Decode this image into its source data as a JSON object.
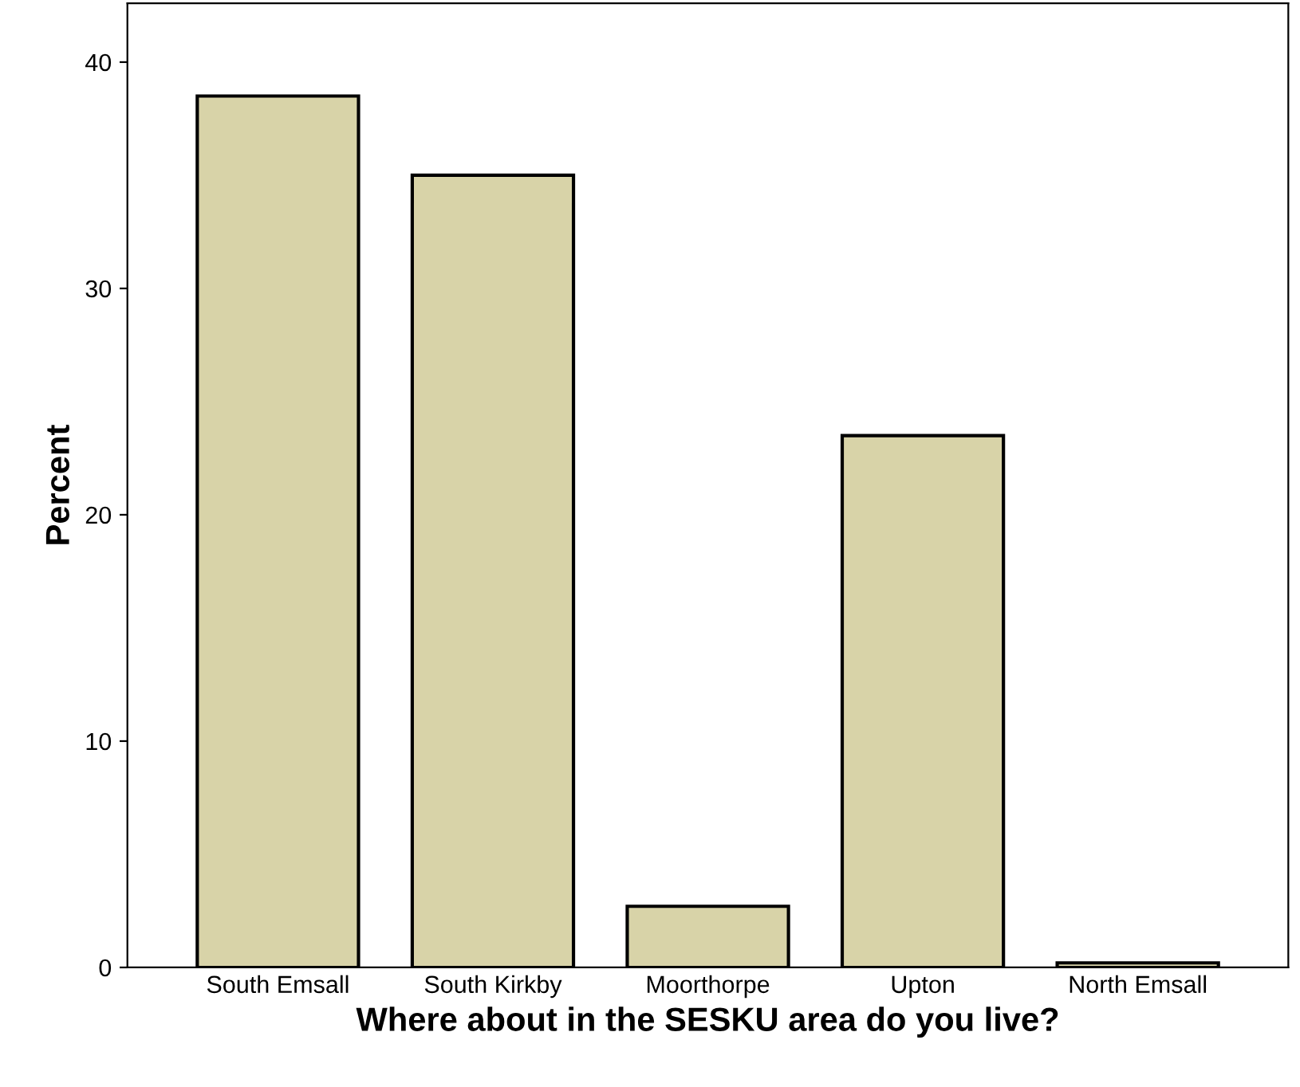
{
  "chart_data": {
    "type": "bar",
    "xlabel": "Where about in the SESKU area do you live?",
    "ylabel": "Percent",
    "categories": [
      "South Emsall",
      "South Kirkby",
      "Moorthorpe",
      "Upton",
      "North Emsall"
    ],
    "values": [
      38.5,
      35.0,
      2.7,
      23.5,
      0.2
    ],
    "color": "#d8d3a8",
    "ylim": [
      0,
      42.6
    ],
    "yticks": [
      0,
      10,
      20,
      30,
      40
    ],
    "grid": false
  }
}
